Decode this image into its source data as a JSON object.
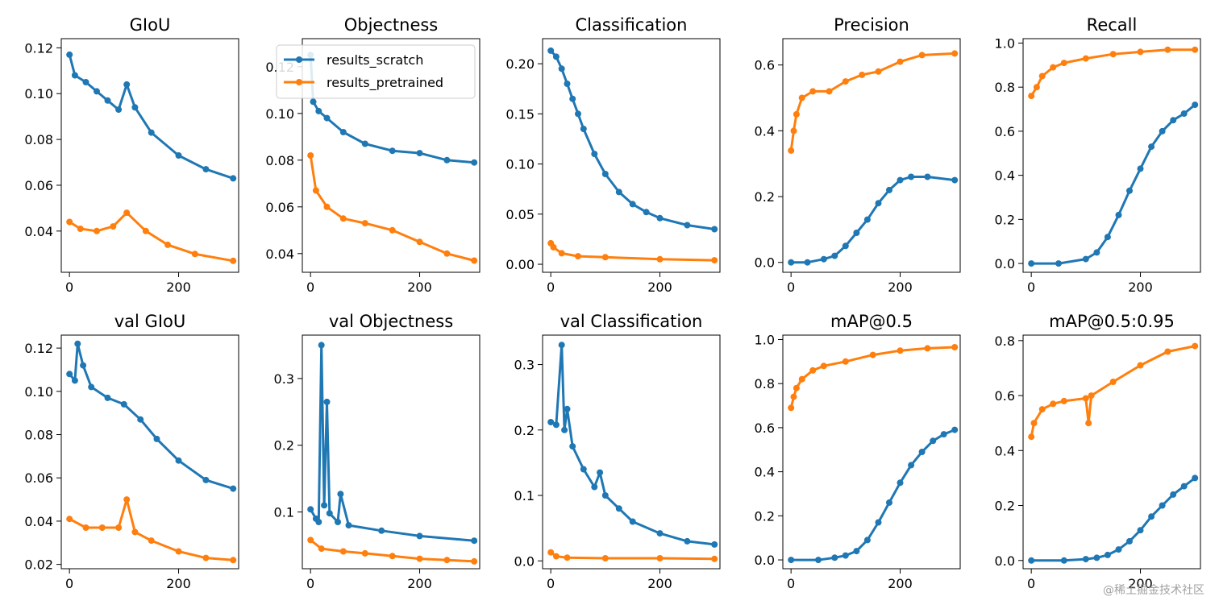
{
  "series_colors": {
    "results_scratch": "#1f77b4",
    "results_pretrained": "#ff7f0e"
  },
  "watermark": "@稀土掘金技术社区",
  "chart_data": [
    {
      "type": "line",
      "title": "GIoU",
      "xlim": [
        -15,
        310
      ],
      "ylim": [
        0.022,
        0.124
      ],
      "xticks": [
        0,
        200
      ],
      "xtick_labels": [
        "0",
        "200"
      ],
      "yticks": [
        0.04,
        0.06,
        0.08,
        0.1,
        0.12
      ],
      "ytick_labels": [
        "0.04",
        "0.06",
        "0.08",
        "0.10",
        "0.12"
      ],
      "series": [
        {
          "name": "results_scratch",
          "x": [
            0,
            10,
            30,
            50,
            70,
            90,
            105,
            120,
            150,
            200,
            250,
            300
          ],
          "values": [
            0.117,
            0.108,
            0.105,
            0.101,
            0.097,
            0.093,
            0.104,
            0.094,
            0.083,
            0.073,
            0.067,
            0.063
          ]
        },
        {
          "name": "results_pretrained",
          "x": [
            0,
            20,
            50,
            80,
            105,
            140,
            180,
            230,
            300
          ],
          "values": [
            0.044,
            0.041,
            0.04,
            0.042,
            0.048,
            0.04,
            0.034,
            0.03,
            0.027
          ]
        }
      ]
    },
    {
      "type": "line",
      "title": "Objectness",
      "xlim": [
        -15,
        310
      ],
      "ylim": [
        0.032,
        0.132
      ],
      "xticks": [
        0,
        200
      ],
      "xtick_labels": [
        "0",
        "200"
      ],
      "yticks": [
        0.04,
        0.06,
        0.08,
        0.1,
        0.12
      ],
      "ytick_labels": [
        "0.04",
        "0.06",
        "0.08",
        "0.10",
        "0.12"
      ],
      "series": [
        {
          "name": "results_scratch",
          "x": [
            0,
            5,
            15,
            30,
            60,
            100,
            150,
            200,
            250,
            300
          ],
          "values": [
            0.125,
            0.105,
            0.101,
            0.098,
            0.092,
            0.087,
            0.084,
            0.083,
            0.08,
            0.079
          ]
        },
        {
          "name": "results_pretrained",
          "x": [
            0,
            10,
            30,
            60,
            100,
            150,
            200,
            250,
            300
          ],
          "values": [
            0.082,
            0.067,
            0.06,
            0.055,
            0.053,
            0.05,
            0.045,
            0.04,
            0.037
          ]
        }
      ]
    },
    {
      "type": "line",
      "title": "Classification",
      "xlim": [
        -15,
        310
      ],
      "ylim": [
        -0.008,
        0.225
      ],
      "xticks": [
        0,
        200
      ],
      "xtick_labels": [
        "0",
        "200"
      ],
      "yticks": [
        0.0,
        0.05,
        0.1,
        0.15,
        0.2
      ],
      "ytick_labels": [
        "0.00",
        "0.05",
        "0.10",
        "0.15",
        "0.20"
      ],
      "series": [
        {
          "name": "results_scratch",
          "x": [
            0,
            10,
            20,
            30,
            40,
            50,
            60,
            80,
            100,
            125,
            150,
            175,
            200,
            250,
            300
          ],
          "values": [
            0.213,
            0.207,
            0.195,
            0.18,
            0.165,
            0.15,
            0.135,
            0.11,
            0.09,
            0.072,
            0.06,
            0.052,
            0.046,
            0.039,
            0.035
          ]
        },
        {
          "name": "results_pretrained",
          "x": [
            0,
            5,
            20,
            50,
            100,
            200,
            300
          ],
          "values": [
            0.021,
            0.017,
            0.011,
            0.008,
            0.007,
            0.005,
            0.004
          ]
        }
      ]
    },
    {
      "type": "line",
      "title": "Precision",
      "xlim": [
        -15,
        310
      ],
      "ylim": [
        -0.03,
        0.68
      ],
      "xticks": [
        0,
        200
      ],
      "xtick_labels": [
        "0",
        "200"
      ],
      "yticks": [
        0.0,
        0.2,
        0.4,
        0.6
      ],
      "ytick_labels": [
        "0.0",
        "0.2",
        "0.4",
        "0.6"
      ],
      "series": [
        {
          "name": "results_scratch",
          "x": [
            0,
            30,
            60,
            80,
            100,
            120,
            140,
            160,
            180,
            200,
            220,
            250,
            300
          ],
          "values": [
            0.0,
            0.0,
            0.01,
            0.02,
            0.05,
            0.09,
            0.13,
            0.18,
            0.22,
            0.25,
            0.26,
            0.26,
            0.25
          ]
        },
        {
          "name": "results_pretrained",
          "x": [
            0,
            5,
            10,
            20,
            40,
            70,
            100,
            130,
            160,
            200,
            240,
            300
          ],
          "values": [
            0.34,
            0.4,
            0.45,
            0.5,
            0.52,
            0.52,
            0.55,
            0.57,
            0.58,
            0.61,
            0.63,
            0.635
          ]
        }
      ]
    },
    {
      "type": "line",
      "title": "Recall",
      "xlim": [
        -15,
        310
      ],
      "ylim": [
        -0.04,
        1.02
      ],
      "xticks": [
        0,
        200
      ],
      "xtick_labels": [
        "0",
        "200"
      ],
      "yticks": [
        0.0,
        0.2,
        0.4,
        0.6,
        0.8,
        1.0
      ],
      "ytick_labels": [
        "0.0",
        "0.2",
        "0.4",
        "0.6",
        "0.8",
        "1.0"
      ],
      "series": [
        {
          "name": "results_scratch",
          "x": [
            0,
            50,
            100,
            120,
            140,
            160,
            180,
            200,
            220,
            240,
            260,
            280,
            300
          ],
          "values": [
            0.0,
            0.0,
            0.02,
            0.05,
            0.12,
            0.22,
            0.33,
            0.43,
            0.53,
            0.6,
            0.65,
            0.68,
            0.72
          ]
        },
        {
          "name": "results_pretrained",
          "x": [
            0,
            10,
            20,
            40,
            60,
            100,
            150,
            200,
            250,
            300
          ],
          "values": [
            0.76,
            0.8,
            0.85,
            0.89,
            0.91,
            0.93,
            0.95,
            0.96,
            0.97,
            0.97
          ]
        }
      ]
    },
    {
      "type": "line",
      "title": "val GIoU",
      "xlim": [
        -15,
        310
      ],
      "ylim": [
        0.018,
        0.126
      ],
      "xticks": [
        0,
        200
      ],
      "xtick_labels": [
        "0",
        "200"
      ],
      "yticks": [
        0.02,
        0.04,
        0.06,
        0.08,
        0.1,
        0.12
      ],
      "ytick_labels": [
        "0.02",
        "0.04",
        "0.06",
        "0.08",
        "0.10",
        "0.12"
      ],
      "series": [
        {
          "name": "results_scratch",
          "x": [
            0,
            10,
            15,
            25,
            40,
            70,
            100,
            130,
            160,
            200,
            250,
            300
          ],
          "values": [
            0.108,
            0.105,
            0.122,
            0.112,
            0.102,
            0.097,
            0.094,
            0.087,
            0.078,
            0.068,
            0.059,
            0.055
          ]
        },
        {
          "name": "results_pretrained",
          "x": [
            0,
            30,
            60,
            90,
            105,
            120,
            150,
            200,
            250,
            300
          ],
          "values": [
            0.041,
            0.037,
            0.037,
            0.037,
            0.05,
            0.035,
            0.031,
            0.026,
            0.023,
            0.022
          ]
        }
      ]
    },
    {
      "type": "line",
      "title": "val Objectness",
      "xlim": [
        -15,
        310
      ],
      "ylim": [
        0.015,
        0.365
      ],
      "xticks": [
        0,
        200
      ],
      "xtick_labels": [
        "0",
        "200"
      ],
      "yticks": [
        0.1,
        0.2,
        0.3
      ],
      "ytick_labels": [
        "0.1",
        "0.2",
        "0.3"
      ],
      "series": [
        {
          "name": "results_scratch",
          "x": [
            0,
            10,
            15,
            20,
            25,
            30,
            35,
            50,
            55,
            70,
            130,
            200,
            300
          ],
          "values": [
            0.104,
            0.09,
            0.085,
            0.35,
            0.11,
            0.265,
            0.098,
            0.085,
            0.127,
            0.08,
            0.072,
            0.064,
            0.057
          ]
        },
        {
          "name": "results_pretrained",
          "x": [
            0,
            20,
            60,
            100,
            150,
            200,
            250,
            300
          ],
          "values": [
            0.058,
            0.045,
            0.041,
            0.038,
            0.034,
            0.03,
            0.028,
            0.026
          ]
        }
      ]
    },
    {
      "type": "line",
      "title": "val Classification",
      "xlim": [
        -15,
        310
      ],
      "ylim": [
        -0.012,
        0.345
      ],
      "xticks": [
        0,
        200
      ],
      "xtick_labels": [
        "0",
        "200"
      ],
      "yticks": [
        0.0,
        0.1,
        0.2,
        0.3
      ],
      "ytick_labels": [
        "0.0",
        "0.1",
        "0.2",
        "0.3"
      ],
      "series": [
        {
          "name": "results_scratch",
          "x": [
            0,
            10,
            20,
            25,
            30,
            40,
            60,
            80,
            90,
            100,
            125,
            150,
            200,
            250,
            300
          ],
          "values": [
            0.212,
            0.208,
            0.33,
            0.2,
            0.232,
            0.175,
            0.14,
            0.113,
            0.135,
            0.1,
            0.08,
            0.06,
            0.042,
            0.03,
            0.025
          ]
        },
        {
          "name": "results_pretrained",
          "x": [
            0,
            10,
            30,
            100,
            200,
            300
          ],
          "values": [
            0.013,
            0.007,
            0.005,
            0.004,
            0.004,
            0.003
          ]
        }
      ]
    },
    {
      "type": "line",
      "title": "mAP@0.5",
      "xlim": [
        -15,
        310
      ],
      "ylim": [
        -0.04,
        1.02
      ],
      "xticks": [
        0,
        200
      ],
      "xtick_labels": [
        "0",
        "200"
      ],
      "yticks": [
        0.0,
        0.2,
        0.4,
        0.6,
        0.8,
        1.0
      ],
      "ytick_labels": [
        "0.0",
        "0.2",
        "0.4",
        "0.6",
        "0.8",
        "1.0"
      ],
      "series": [
        {
          "name": "results_scratch",
          "x": [
            0,
            50,
            80,
            100,
            120,
            140,
            160,
            180,
            200,
            220,
            240,
            260,
            280,
            300
          ],
          "values": [
            0.0,
            0.0,
            0.01,
            0.02,
            0.04,
            0.09,
            0.17,
            0.26,
            0.35,
            0.43,
            0.49,
            0.54,
            0.57,
            0.59
          ]
        },
        {
          "name": "results_pretrained",
          "x": [
            0,
            5,
            10,
            20,
            40,
            60,
            100,
            150,
            200,
            250,
            300
          ],
          "values": [
            0.69,
            0.74,
            0.78,
            0.82,
            0.86,
            0.88,
            0.9,
            0.93,
            0.95,
            0.96,
            0.965
          ]
        }
      ]
    },
    {
      "type": "line",
      "title": "mAP@0.5:0.95",
      "xlim": [
        -15,
        310
      ],
      "ylim": [
        -0.03,
        0.82
      ],
      "xticks": [
        0,
        200
      ],
      "xtick_labels": [
        "0",
        "200"
      ],
      "yticks": [
        0.0,
        0.2,
        0.4,
        0.6,
        0.8
      ],
      "ytick_labels": [
        "0.0",
        "0.2",
        "0.4",
        "0.6",
        "0.8"
      ],
      "series": [
        {
          "name": "results_scratch",
          "x": [
            0,
            60,
            100,
            120,
            140,
            160,
            180,
            200,
            220,
            240,
            260,
            280,
            300
          ],
          "values": [
            0.0,
            0.0,
            0.005,
            0.01,
            0.02,
            0.04,
            0.07,
            0.11,
            0.16,
            0.2,
            0.24,
            0.27,
            0.3
          ]
        },
        {
          "name": "results_pretrained",
          "x": [
            0,
            5,
            20,
            40,
            60,
            100,
            105,
            110,
            150,
            200,
            250,
            300
          ],
          "values": [
            0.45,
            0.5,
            0.55,
            0.57,
            0.58,
            0.59,
            0.5,
            0.6,
            0.65,
            0.71,
            0.76,
            0.78
          ]
        }
      ]
    }
  ],
  "legend": {
    "placement": "upper-left of Objectness panel",
    "entries": [
      "results_scratch",
      "results_pretrained"
    ]
  }
}
